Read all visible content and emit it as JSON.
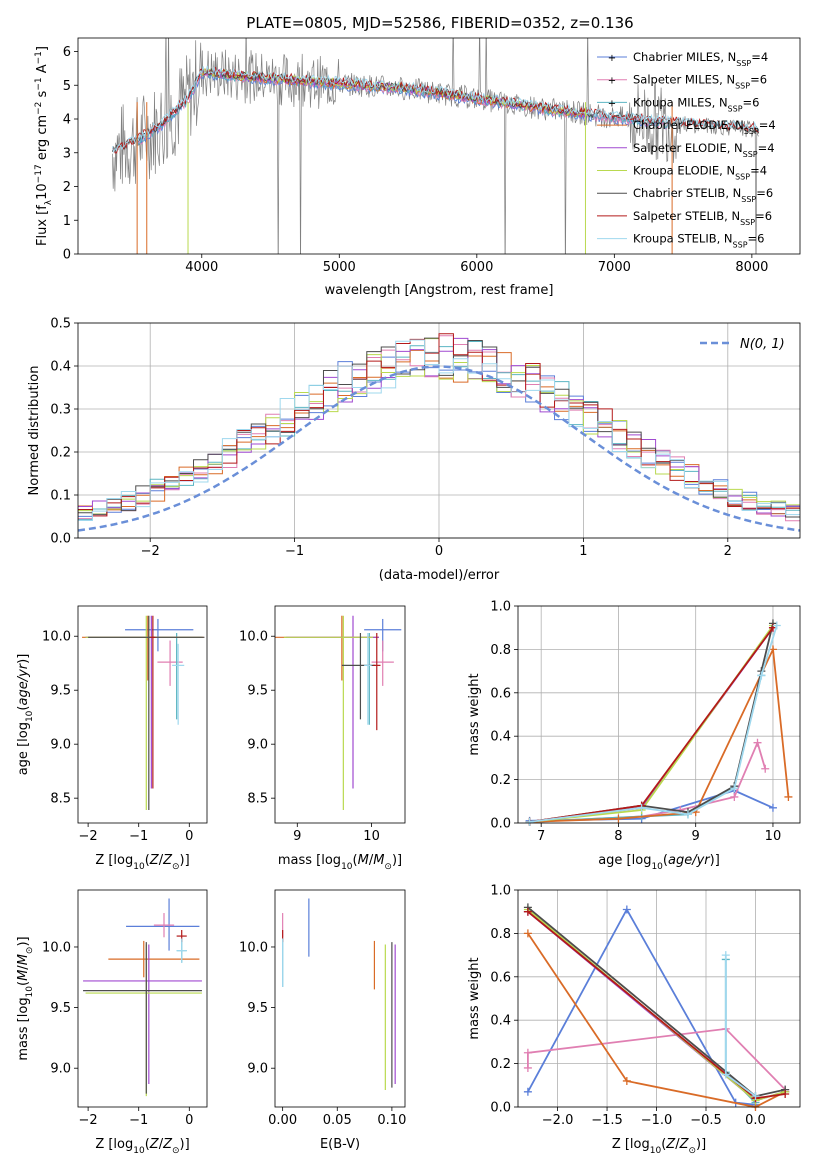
{
  "figure": {
    "title": "PLATE=0805, MJD=52586, FIBERID=0352, z=0.136"
  },
  "colors": {
    "chab_miles": "#5b7fd9",
    "salp_miles": "#e07fb2",
    "krou_miles": "#5bb5c2",
    "chab_elodie": "#d96b27",
    "salp_elodie": "#a04ad0",
    "krou_elodie": "#b9d94f",
    "chab_stelib": "#4d4d4d",
    "salp_stelib": "#b31a1a",
    "krou_stelib": "#9fd8ee",
    "normal": "#6a8fd8",
    "spectrum": "#808080"
  },
  "chart_data": [
    {
      "id": "spectrum",
      "type": "line",
      "xlabel": "wavelength [Angstrom, rest frame]",
      "ylabel": "Flux [f_λ 10^-17 erg cm^-2 s^-1 A^-1]",
      "xlim": [
        3100,
        8350
      ],
      "ylim": [
        0,
        6.4
      ],
      "xticks": [
        4000,
        5000,
        6000,
        7000,
        8000
      ],
      "yticks": [
        0,
        1,
        2,
        3,
        4,
        5,
        6
      ],
      "grid": false,
      "legend_position": "right",
      "legend": [
        {
          "key": "chab_miles",
          "label": "Chabrier MILES, N",
          "sub": "SSP",
          "tail": "=4"
        },
        {
          "key": "salp_miles",
          "label": "Salpeter MILES, N",
          "sub": "SSP",
          "tail": "=6"
        },
        {
          "key": "krou_miles",
          "label": "Kroupa MILES, N",
          "sub": "SSP",
          "tail": "=6"
        },
        {
          "key": "chab_elodie",
          "label": "Chabrier ELODIE, N",
          "sub": "SSP",
          "tail": "=4"
        },
        {
          "key": "salp_elodie",
          "label": "Salpeter ELODIE, N",
          "sub": "SSP",
          "tail": "=4"
        },
        {
          "key": "krou_elodie",
          "label": "Kroupa ELODIE, N",
          "sub": "SSP",
          "tail": "=4"
        },
        {
          "key": "chab_stelib",
          "label": "Chabrier STELIB, N",
          "sub": "SSP",
          "tail": "=6"
        },
        {
          "key": "salp_stelib",
          "label": "Salpeter STELIB, N",
          "sub": "SSP",
          "tail": "=6"
        },
        {
          "key": "krou_stelib",
          "label": "Kroupa STELIB, N",
          "sub": "SSP",
          "tail": "=6"
        }
      ],
      "continuum": {
        "x": [
          3350,
          3500,
          3700,
          3900,
          4000,
          4200,
          4500,
          5000,
          5500,
          6000,
          6500,
          7000,
          7500,
          8000,
          8050
        ],
        "y": [
          3.0,
          3.3,
          3.8,
          4.6,
          5.4,
          5.3,
          5.2,
          5.05,
          4.9,
          4.6,
          4.3,
          4.05,
          3.85,
          3.7,
          3.65
        ]
      }
    },
    {
      "id": "residuals",
      "type": "histogram",
      "xlabel": "(data-model)/error",
      "ylabel": "Normed distribution",
      "xlim": [
        -2.5,
        2.5
      ],
      "ylim": [
        0,
        0.5
      ],
      "xticks": [
        -2,
        -1,
        0,
        1,
        2
      ],
      "yticks": [
        0.0,
        0.1,
        0.2,
        0.3,
        0.4,
        0.5
      ],
      "grid": true,
      "legend_position": "top-right",
      "normal_label": "N(0, 1)",
      "bins": {
        "start": -2.5,
        "width": 0.1,
        "count": 50
      },
      "series_keys": [
        "chab_miles",
        "salp_miles",
        "krou_miles",
        "chab_elodie",
        "salp_elodie",
        "krou_elodie",
        "chab_stelib",
        "salp_stelib",
        "krou_stelib"
      ]
    },
    {
      "id": "age_vs_z",
      "type": "errorbar",
      "xlabel": "Z [log10(Z/Z⊙)]",
      "ylabel": "age [log10(age/yr)]",
      "xlim": [
        -2.2,
        0.35
      ],
      "ylim": [
        8.27,
        10.28
      ],
      "xticks": [
        -2,
        -1,
        0
      ],
      "yticks": [
        8.5,
        9.0,
        9.5,
        10.0
      ],
      "points": [
        {
          "key": "chab_miles",
          "x": -0.62,
          "xerr": [
            0.65,
            0.7
          ],
          "y": 10.06,
          "yerr": [
            0.2,
            0.1
          ]
        },
        {
          "key": "salp_miles",
          "x": -0.38,
          "xerr": [
            0.25,
            0.25
          ],
          "y": 9.76,
          "yerr": [
            0.22,
            0.2
          ]
        },
        {
          "key": "krou_miles",
          "x": -0.25,
          "xerr": [
            0.02,
            0.02
          ],
          "y": 9.73,
          "yerr": [
            0.5,
            0.3
          ]
        },
        {
          "key": "chab_elodie",
          "x": -0.82,
          "xerr": [
            1.3,
            1.1
          ],
          "y": 9.99,
          "yerr": [
            0.4,
            0.2
          ]
        },
        {
          "key": "salp_elodie",
          "x": -0.75,
          "xerr": [
            1.3,
            1.0
          ],
          "y": 9.99,
          "yerr": [
            1.4,
            0.2
          ]
        },
        {
          "key": "krou_elodie",
          "x": -0.85,
          "xerr": [
            1.2,
            1.1
          ],
          "y": 9.99,
          "yerr": [
            1.6,
            0.2
          ]
        },
        {
          "key": "chab_stelib",
          "x": -0.8,
          "xerr": [
            1.2,
            1.1
          ],
          "y": 9.99,
          "yerr": [
            1.6,
            0.2
          ]
        },
        {
          "key": "salp_stelib",
          "x": -0.72,
          "xerr": [
            0.05,
            0.05
          ],
          "y": 9.99,
          "yerr": [
            1.4,
            0.2
          ]
        },
        {
          "key": "krou_stelib",
          "x": -0.22,
          "xerr": [
            0.12,
            0.12
          ],
          "y": 9.73,
          "yerr": [
            0.55,
            0.2
          ]
        }
      ]
    },
    {
      "id": "age_vs_mass",
      "type": "errorbar",
      "xlabel": "mass [log10(M/M⊙)]",
      "ylabel": "",
      "xlim": [
        8.7,
        10.45
      ],
      "ylim": [
        8.27,
        10.28
      ],
      "xticks": [
        9,
        10
      ],
      "yticks": [
        8.5,
        9.0,
        9.5,
        10.0
      ],
      "points": [
        {
          "key": "chab_miles",
          "x": 10.15,
          "xerr": [
            0.25,
            0.25
          ],
          "y": 10.06,
          "yerr": [
            0.2,
            0.1
          ]
        },
        {
          "key": "salp_miles",
          "x": 10.15,
          "xerr": [
            0.15,
            0.15
          ],
          "y": 9.76,
          "yerr": [
            0.22,
            0.2
          ]
        },
        {
          "key": "krou_miles",
          "x": 9.97,
          "xerr": [
            0.02,
            0.02
          ],
          "y": 9.73,
          "yerr": [
            0.55,
            0.3
          ]
        },
        {
          "key": "chab_elodie",
          "x": 9.6,
          "xerr": [
            0.9,
            0.5
          ],
          "y": 9.99,
          "yerr": [
            0.4,
            0.2
          ]
        },
        {
          "key": "salp_elodie",
          "x": 9.75,
          "xerr": [
            0.9,
            0.35
          ],
          "y": 9.99,
          "yerr": [
            1.4,
            0.2
          ]
        },
        {
          "key": "krou_elodie",
          "x": 9.62,
          "xerr": [
            0.8,
            0.4
          ],
          "y": 9.99,
          "yerr": [
            1.6,
            0.2
          ]
        },
        {
          "key": "chab_stelib",
          "x": 9.85,
          "xerr": [
            0.25,
            0.2
          ],
          "y": 9.73,
          "yerr": [
            0.5,
            0.3
          ]
        },
        {
          "key": "salp_stelib",
          "x": 10.07,
          "xerr": [
            0.05,
            0.05
          ],
          "y": 9.73,
          "yerr": [
            0.6,
            0.3
          ]
        },
        {
          "key": "krou_stelib",
          "x": 9.95,
          "xerr": [
            0.05,
            0.05
          ],
          "y": 9.73,
          "yerr": [
            0.55,
            0.3
          ]
        }
      ]
    },
    {
      "id": "weight_vs_age",
      "type": "line",
      "xlabel": "age [log10(age/yr)]",
      "ylabel": "mass weight",
      "xlim": [
        6.7,
        10.35
      ],
      "ylim": [
        0,
        1.0
      ],
      "xticks": [
        7,
        8,
        9,
        10
      ],
      "yticks": [
        0.0,
        0.2,
        0.4,
        0.6,
        0.8,
        1.0
      ],
      "grid": true,
      "series": [
        {
          "key": "chab_miles",
          "x": [
            6.85,
            8.3,
            9.5,
            10.0
          ],
          "y": [
            0.01,
            0.02,
            0.15,
            0.07
          ]
        },
        {
          "key": "salp_miles",
          "x": [
            6.85,
            8.3,
            8.8,
            9.5,
            9.8,
            9.9
          ],
          "y": [
            0.005,
            0.03,
            0.06,
            0.12,
            0.37,
            0.25
          ]
        },
        {
          "key": "krou_miles",
          "x": [
            6.85,
            8.3,
            8.9,
            9.5,
            9.85
          ],
          "y": [
            0.005,
            0.03,
            0.04,
            0.17,
            0.68
          ]
        },
        {
          "key": "chab_elodie",
          "x": [
            6.85,
            8.0,
            9.0,
            10.0,
            10.2
          ],
          "y": [
            0.005,
            0.02,
            0.05,
            0.8,
            0.12
          ]
        },
        {
          "key": "salp_elodie",
          "x": [
            6.85,
            8.3,
            10.0
          ],
          "y": [
            0.005,
            0.07,
            0.9
          ]
        },
        {
          "key": "krou_elodie",
          "x": [
            6.85,
            8.3,
            10.0
          ],
          "y": [
            0.005,
            0.06,
            0.91
          ]
        },
        {
          "key": "chab_stelib",
          "x": [
            6.85,
            8.3,
            8.9,
            9.5,
            9.85,
            10.0
          ],
          "y": [
            0.005,
            0.08,
            0.05,
            0.17,
            0.7,
            0.92
          ]
        },
        {
          "key": "salp_stelib",
          "x": [
            6.85,
            8.3,
            10.0
          ],
          "y": [
            0.005,
            0.08,
            0.9
          ]
        },
        {
          "key": "krou_stelib",
          "x": [
            6.85,
            8.3,
            8.9,
            9.5,
            9.85,
            10.05
          ],
          "y": [
            0.005,
            0.07,
            0.04,
            0.16,
            0.68,
            0.91
          ]
        }
      ]
    },
    {
      "id": "mass_vs_z",
      "type": "errorbar",
      "xlabel": "Z [log10(Z/Z⊙)]",
      "ylabel": "mass [log10(M/M⊙)]",
      "xlim": [
        -2.2,
        0.35
      ],
      "ylim": [
        8.68,
        10.47
      ],
      "xticks": [
        -2,
        -1,
        0
      ],
      "yticks": [
        9.0,
        9.5,
        10.0
      ],
      "points": [
        {
          "key": "chab_miles",
          "x": -0.4,
          "xerr": [
            0.85,
            0.6
          ],
          "y": 10.17,
          "yerr": [
            0.2,
            0.23
          ]
        },
        {
          "key": "salp_miles",
          "x": -0.5,
          "xerr": [
            0.2,
            0.2
          ],
          "y": 10.18,
          "yerr": [
            0.1,
            0.1
          ]
        },
        {
          "key": "krou_miles",
          "x": -0.15,
          "xerr": [
            0.1,
            0.1
          ],
          "y": 9.97,
          "yerr": [
            0.1,
            0.1
          ]
        },
        {
          "key": "chab_elodie",
          "x": -0.9,
          "xerr": [
            0.7,
            1.1
          ],
          "y": 9.9,
          "yerr": [
            0.15,
            0.15
          ]
        },
        {
          "key": "salp_elodie",
          "x": -0.8,
          "xerr": [
            1.3,
            1.05
          ],
          "y": 9.72,
          "yerr": [
            0.85,
            0.3
          ]
        },
        {
          "key": "krou_elodie",
          "x": -0.85,
          "xerr": [
            1.2,
            1.1
          ],
          "y": 9.62,
          "yerr": [
            0.85,
            0.4
          ]
        },
        {
          "key": "chab_stelib",
          "x": -0.85,
          "xerr": [
            1.25,
            1.1
          ],
          "y": 9.64,
          "yerr": [
            0.85,
            0.4
          ]
        },
        {
          "key": "salp_stelib",
          "x": -0.15,
          "xerr": [
            0.1,
            0.1
          ],
          "y": 10.09,
          "yerr": [
            0.05,
            0.05
          ]
        },
        {
          "key": "krou_stelib",
          "x": -0.15,
          "xerr": [
            0.1,
            0.1
          ],
          "y": 9.97,
          "yerr": [
            0.1,
            0.1
          ]
        }
      ]
    },
    {
      "id": "mass_vs_ebv",
      "type": "errorbar",
      "xlabel": "E(B-V)",
      "ylabel": "",
      "xlim": [
        -0.007,
        0.112
      ],
      "ylim": [
        8.68,
        10.47
      ],
      "xticks": [
        0.0,
        0.05,
        0.1
      ],
      "xticklabels": [
        "0.00",
        "0.05",
        "0.10"
      ],
      "yticks": [
        9.0,
        9.5,
        10.0
      ],
      "points": [
        {
          "key": "chab_miles",
          "x": 0.024,
          "xerr": [
            0,
            0
          ],
          "y": 10.17,
          "yerr": [
            0.25,
            0.23
          ]
        },
        {
          "key": "salp_miles",
          "x": 0.0,
          "xerr": [
            0,
            0
          ],
          "y": 10.18,
          "yerr": [
            0.1,
            0.1
          ]
        },
        {
          "key": "krou_miles",
          "x": 0.0,
          "xerr": [
            0,
            0
          ],
          "y": 9.97,
          "yerr": [
            0.3,
            0.1
          ]
        },
        {
          "key": "chab_elodie",
          "x": 0.084,
          "xerr": [
            0,
            0
          ],
          "y": 9.85,
          "yerr": [
            0.2,
            0.2
          ]
        },
        {
          "key": "salp_elodie",
          "x": 0.103,
          "xerr": [
            0,
            0
          ],
          "y": 9.72,
          "yerr": [
            0.85,
            0.3
          ]
        },
        {
          "key": "krou_elodie",
          "x": 0.094,
          "xerr": [
            0,
            0
          ],
          "y": 9.62,
          "yerr": [
            0.8,
            0.4
          ]
        },
        {
          "key": "chab_stelib",
          "x": 0.1,
          "xerr": [
            0,
            0
          ],
          "y": 9.64,
          "yerr": [
            0.8,
            0.4
          ]
        },
        {
          "key": "salp_stelib",
          "x": 0.0,
          "xerr": [
            0,
            0
          ],
          "y": 10.09,
          "yerr": [
            0.05,
            0.05
          ]
        },
        {
          "key": "krou_stelib",
          "x": 0.0,
          "xerr": [
            0,
            0
          ],
          "y": 9.97,
          "yerr": [
            0.3,
            0.1
          ]
        }
      ]
    },
    {
      "id": "weight_vs_z",
      "type": "line",
      "xlabel": "Z [log10(Z/Z⊙)]",
      "ylabel": "mass weight",
      "xlim": [
        -2.4,
        0.45
      ],
      "ylim": [
        0,
        1.0
      ],
      "xticks": [
        -2.0,
        -1.5,
        -1.0,
        -0.5,
        0.0
      ],
      "xticklabels": [
        "−2.0",
        "−1.5",
        "−1.0",
        "−0.5",
        "0.0"
      ],
      "yticks": [
        0.0,
        0.2,
        0.4,
        0.6,
        0.8,
        1.0
      ],
      "grid": true,
      "series": [
        {
          "key": "chab_miles",
          "x": [
            -2.3,
            -1.3,
            -0.2,
            0.0
          ],
          "y": [
            0.07,
            0.91,
            0.02,
            0.01
          ]
        },
        {
          "key": "salp_miles",
          "x": [
            -2.3,
            -2.3,
            -0.3,
            0.3
          ],
          "y": [
            0.18,
            0.25,
            0.36,
            0.08
          ]
        },
        {
          "key": "krou_miles",
          "x": [
            -0.3,
            -0.3,
            0.0
          ],
          "y": [
            0.68,
            0.16,
            0.02
          ]
        },
        {
          "key": "chab_elodie",
          "x": [
            -2.3,
            -1.3,
            0.0,
            0.3
          ],
          "y": [
            0.8,
            0.12,
            0.0,
            0.07
          ]
        },
        {
          "key": "salp_elodie",
          "x": [
            -2.3,
            0.0,
            0.3
          ],
          "y": [
            0.9,
            0.03,
            0.07
          ]
        },
        {
          "key": "krou_elodie",
          "x": [
            -2.3,
            0.0,
            0.3
          ],
          "y": [
            0.91,
            0.03,
            0.07
          ]
        },
        {
          "key": "chab_stelib",
          "x": [
            -2.3,
            0.0,
            0.3
          ],
          "y": [
            0.92,
            0.05,
            0.08
          ]
        },
        {
          "key": "salp_stelib",
          "x": [
            -2.3,
            0.0,
            0.3
          ],
          "y": [
            0.9,
            0.04,
            0.06
          ]
        },
        {
          "key": "krou_stelib",
          "x": [
            -0.3,
            -0.3,
            0.0
          ],
          "y": [
            0.7,
            0.15,
            0.05
          ]
        }
      ]
    }
  ]
}
